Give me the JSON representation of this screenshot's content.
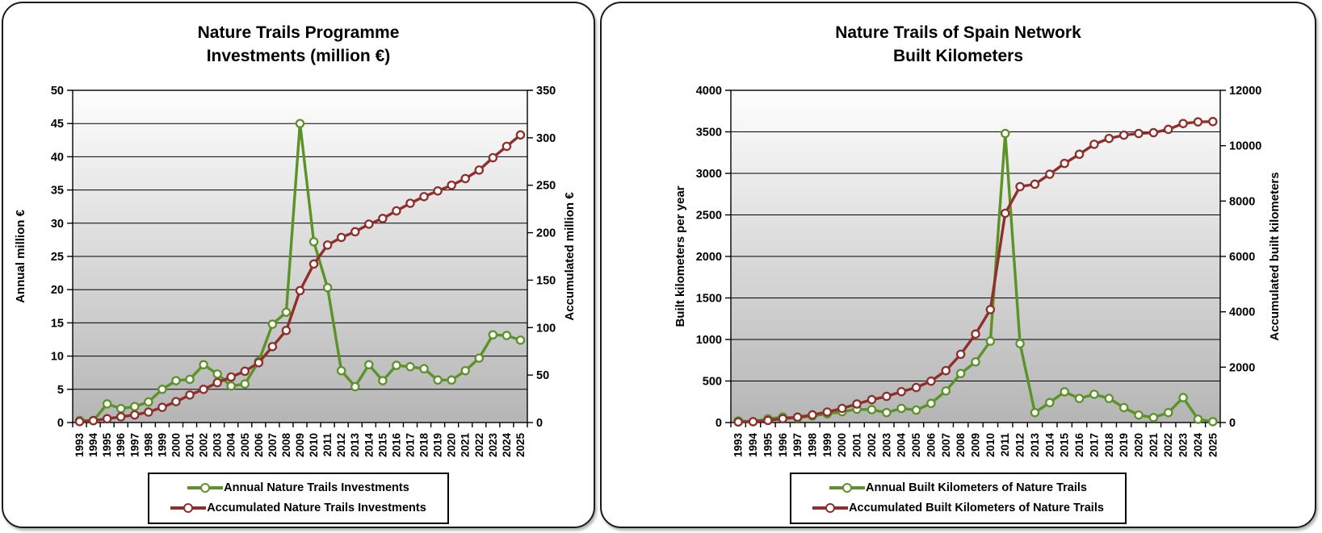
{
  "colors": {
    "annual_series": "#5b9328",
    "accumulated_series": "#8f2f2b",
    "plot_gradient_top": "#fefefe",
    "plot_gradient_bottom": "#b5b5b5",
    "gridline": "#000000",
    "axis_text": "#000000"
  },
  "chart_data": [
    {
      "type": "line",
      "title_lines": [
        "Nature Trails Programme",
        "Investments (million €)"
      ],
      "categories": [
        "1993",
        "1994",
        "1995",
        "1996",
        "1997",
        "1998",
        "1999",
        "2000",
        "2001",
        "2002",
        "2003",
        "2004",
        "2005",
        "2006",
        "2007",
        "2008",
        "2009",
        "2010",
        "2011",
        "2012",
        "2013",
        "2014",
        "2015",
        "2016",
        "2017",
        "2018",
        "2019",
        "2020",
        "2021",
        "2022",
        "2023",
        "2024",
        "2025"
      ],
      "left_axis": {
        "label": "Annual million €",
        "min": 0,
        "max": 50,
        "step": 5
      },
      "right_axis": {
        "label": "Accumulated million €",
        "min": 0,
        "max": 350,
        "step": 50
      },
      "grid": true,
      "legend_position": "bottom",
      "series": [
        {
          "name": "Annual Nature Trails Investments",
          "axis": "left",
          "color": "#5b9328",
          "marker": "circle-open",
          "values": [
            0.3,
            0.3,
            2.8,
            2.1,
            2.4,
            3.1,
            5.0,
            6.3,
            6.5,
            8.7,
            7.3,
            5.5,
            5.8,
            9.2,
            14.8,
            16.6,
            45.0,
            27.2,
            20.3,
            7.8,
            5.4,
            8.7,
            6.3,
            8.6,
            8.4,
            8.1,
            6.4,
            6.4,
            7.8,
            9.7,
            13.2,
            13.1,
            12.4
          ]
        },
        {
          "name": "Accumulated Nature Trails Investments",
          "axis": "right",
          "color": "#8f2f2b",
          "marker": "circle-open",
          "values": [
            1,
            2,
            4,
            6,
            8,
            11,
            16,
            22,
            29,
            35,
            42,
            48,
            54,
            63,
            80,
            97,
            139,
            167,
            187,
            195,
            201,
            209,
            215,
            223,
            231,
            238,
            244,
            250,
            257,
            266,
            279,
            291,
            303
          ]
        }
      ]
    },
    {
      "type": "line",
      "title_lines": [
        "Nature Trails of Spain Network",
        "Built Kilometers"
      ],
      "categories": [
        "1993",
        "1994",
        "1995",
        "1996",
        "1997",
        "1998",
        "1999",
        "2000",
        "2001",
        "2002",
        "2003",
        "2004",
        "2005",
        "2006",
        "2007",
        "2008",
        "2009",
        "2010",
        "2011",
        "2012",
        "2013",
        "2014",
        "2015",
        "2016",
        "2017",
        "2018",
        "2019",
        "2020",
        "2021",
        "2022",
        "2023",
        "2024",
        "2025"
      ],
      "left_axis": {
        "label": "Built kilometers per year",
        "min": 0,
        "max": 4000,
        "step": 500
      },
      "right_axis": {
        "label": "Accumulated built kilometers",
        "min": 0,
        "max": 12000,
        "step": 2000
      },
      "grid": true,
      "legend_position": "bottom",
      "series": [
        {
          "name": "Annual Built Kilometers of Nature Trails",
          "axis": "left",
          "color": "#5b9328",
          "marker": "circle-open",
          "values": [
            20,
            10,
            45,
            65,
            55,
            80,
            105,
            130,
            160,
            155,
            120,
            170,
            150,
            230,
            380,
            590,
            730,
            980,
            3480,
            950,
            120,
            240,
            370,
            290,
            340,
            290,
            180,
            90,
            60,
            120,
            300,
            40,
            10
          ]
        },
        {
          "name": "Accumulated Built Kilometers of Nature Trails",
          "axis": "right",
          "color": "#8f2f2b",
          "marker": "circle-open",
          "values": [
            20,
            30,
            75,
            140,
            195,
            275,
            380,
            510,
            670,
            825,
            945,
            1115,
            1265,
            1495,
            1875,
            2465,
            3195,
            4080,
            7560,
            8520,
            8610,
            8970,
            9360,
            9690,
            10050,
            10260,
            10380,
            10440,
            10470,
            10590,
            10800,
            10860,
            10870
          ]
        }
      ]
    }
  ]
}
